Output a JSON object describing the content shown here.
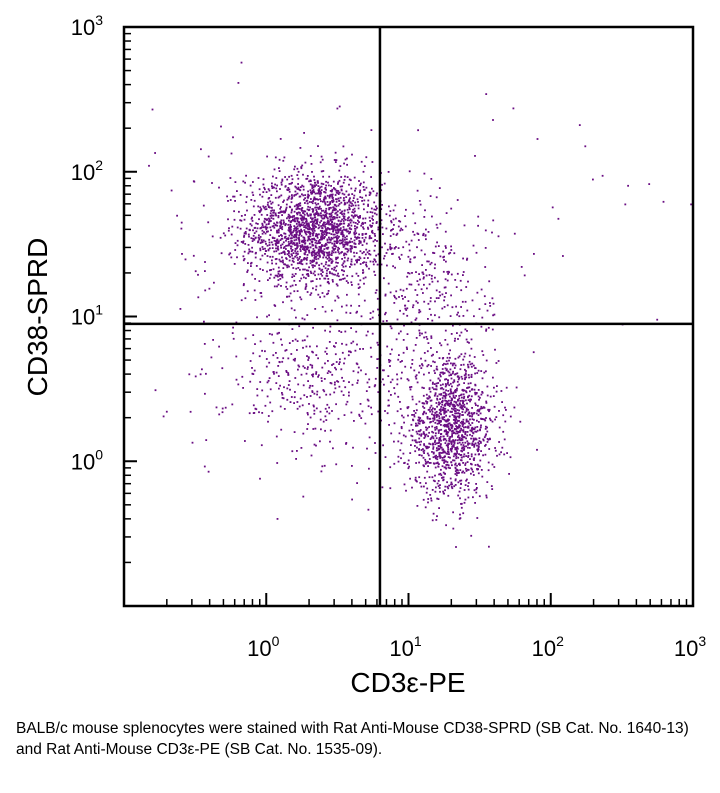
{
  "chart_data": {
    "type": "scatter",
    "scale": "log",
    "xlabel": "CD3ε-PE",
    "ylabel": "CD38-SPRD",
    "xlim": [
      0.1,
      1000
    ],
    "ylim": [
      0.1,
      1000
    ],
    "x_ticks": [
      {
        "base": "10",
        "exp": "0",
        "value": 1
      },
      {
        "base": "10",
        "exp": "1",
        "value": 10
      },
      {
        "base": "10",
        "exp": "2",
        "value": 100
      },
      {
        "base": "10",
        "exp": "3",
        "value": 1000
      }
    ],
    "y_ticks": [
      {
        "base": "10",
        "exp": "0",
        "value": 1
      },
      {
        "base": "10",
        "exp": "1",
        "value": 10
      },
      {
        "base": "10",
        "exp": "2",
        "value": 100
      },
      {
        "base": "10",
        "exp": "3",
        "value": 1000
      }
    ],
    "quadrant_gate": {
      "x": 6.3,
      "y": 8.9
    },
    "point_color": "#6a0d83",
    "populations": [
      {
        "center": [
          2.2,
          40
        ],
        "spread_decades": [
          0.24,
          0.2
        ],
        "count": 1900
      },
      {
        "center": [
          20,
          1.7
        ],
        "spread_decades": [
          0.16,
          0.24
        ],
        "count": 1300
      },
      {
        "center": [
          2.4,
          3.5
        ],
        "spread_decades": [
          0.33,
          0.25
        ],
        "count": 400
      },
      {
        "center": [
          14,
          15
        ],
        "spread_decades": [
          0.22,
          0.3
        ],
        "count": 320
      },
      {
        "center": [
          1.3,
          25
        ],
        "spread_decades": [
          0.5,
          0.5
        ],
        "count": 160
      },
      {
        "center": [
          60,
          60
        ],
        "spread_decades": [
          0.6,
          0.4
        ],
        "count": 20
      }
    ],
    "sample_points": [
      [
        160,
        210
      ],
      [
        175,
        150
      ],
      [
        620,
        62
      ],
      [
        350,
        80
      ],
      [
        320,
        8.8
      ],
      [
        560,
        9.5
      ],
      [
        0.15,
        110
      ],
      [
        0.2,
        2.2
      ],
      [
        80,
        1.2
      ],
      [
        1.2,
        0.4
      ]
    ]
  },
  "caption": "BALB/c mouse splenocytes were stained with Rat Anti-Mouse CD38-SPRD (SB Cat. No. 1640-13) and Rat Anti-Mouse CD3ε-PE (SB Cat. No. 1535-09)."
}
